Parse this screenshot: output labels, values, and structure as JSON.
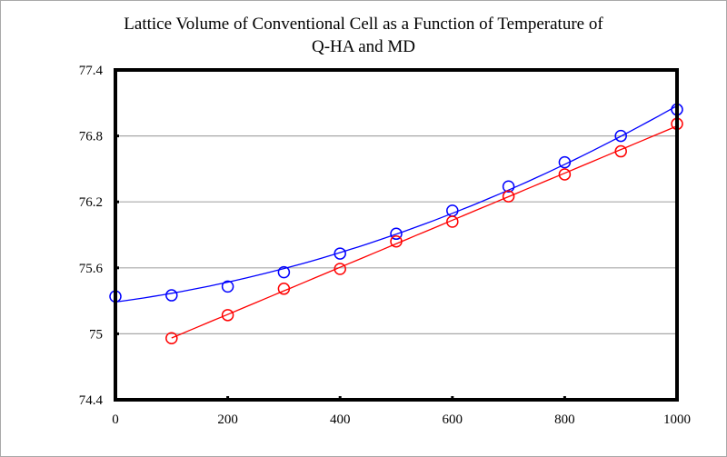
{
  "chart_data": {
    "type": "scatter",
    "title_lines": [
      "Lattice Volume of Conventional Cell as a Function of Temperature of",
      "Q-HA and MD"
    ],
    "title": "Lattice Volume of Conventional Cell as a Function of Temperature of Q-HA and MD",
    "xlabel": "",
    "ylabel": "",
    "xlim": [
      0,
      1000
    ],
    "ylim": [
      74.4,
      77.4
    ],
    "xticks": [
      0,
      200,
      400,
      600,
      800,
      1000
    ],
    "xtick_labels": [
      "0",
      "200",
      "400",
      "600",
      "800",
      "1000"
    ],
    "yticks": [
      74.4,
      75,
      75.6,
      76.2,
      76.8,
      77.4
    ],
    "ytick_labels": [
      "74.4",
      "75",
      "75.6",
      "76.2",
      "76.8",
      "77.4"
    ],
    "grid": "horizontal",
    "legend": "none",
    "series": [
      {
        "name": "Q-HA",
        "color": "#0000ff",
        "marker": "open-circle",
        "line": "smooth-fit",
        "x": [
          0,
          100,
          200,
          300,
          400,
          500,
          600,
          700,
          800,
          900,
          1000
        ],
        "y": [
          75.34,
          75.35,
          75.43,
          75.56,
          75.73,
          75.91,
          76.12,
          76.34,
          76.56,
          76.8,
          77.04
        ]
      },
      {
        "name": "MD",
        "color": "#ff0000",
        "marker": "open-circle",
        "line": "linear-fit",
        "x": [
          100,
          200,
          300,
          400,
          500,
          600,
          700,
          800,
          900,
          1000
        ],
        "y": [
          74.96,
          75.17,
          75.41,
          75.59,
          75.84,
          76.02,
          76.25,
          76.45,
          76.66,
          76.91
        ]
      }
    ]
  }
}
